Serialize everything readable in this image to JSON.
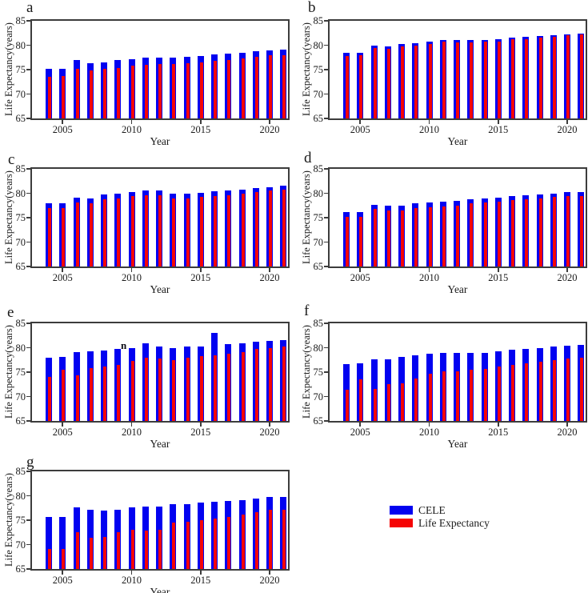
{
  "figure": {
    "y_axis_label": "Life Expectancy(years)",
    "x_axis_label": "Year",
    "y_ticks": [
      65,
      70,
      75,
      80,
      85
    ],
    "x_tick_years": [
      2005,
      2010,
      2015,
      2020
    ],
    "colors": {
      "cele": "#0202F0",
      "life_expectancy": "#F50505",
      "axis": "#3c3c3c"
    },
    "legend": {
      "items": [
        {
          "label": "CELE",
          "color": "#0202F0"
        },
        {
          "label": "Life Expectancy",
          "color": "#F50505"
        }
      ]
    }
  },
  "chart_data": [
    {
      "type": "bar",
      "panel": "a",
      "title": "",
      "xlabel": "Year",
      "ylabel": "Life Expectancy(years)",
      "ylim": [
        65,
        85
      ],
      "x": [
        2004,
        2005,
        2006,
        2007,
        2008,
        2009,
        2010,
        2011,
        2012,
        2013,
        2014,
        2015,
        2016,
        2017,
        2018,
        2019,
        2020,
        2021
      ],
      "series": [
        {
          "name": "CELE",
          "color": "#0202F0",
          "values": [
            75.2,
            75.1,
            76.9,
            76.3,
            76.5,
            76.9,
            77.2,
            77.4,
            77.5,
            77.4,
            77.6,
            77.8,
            78.1,
            78.3,
            78.5,
            78.8,
            79.0,
            79.1
          ]
        },
        {
          "name": "Life Expectancy",
          "color": "#F50505",
          "values": [
            73.6,
            73.7,
            75.2,
            74.8,
            75.1,
            75.4,
            75.8,
            76.0,
            76.1,
            76.1,
            76.3,
            76.5,
            76.8,
            77.0,
            77.3,
            77.6,
            77.9,
            78.0
          ]
        }
      ]
    },
    {
      "type": "bar",
      "panel": "b",
      "title": "",
      "xlabel": "Year",
      "ylabel": "Life Expectancy(years)",
      "ylim": [
        65,
        85
      ],
      "x": [
        2004,
        2005,
        2006,
        2007,
        2008,
        2009,
        2010,
        2011,
        2012,
        2013,
        2014,
        2015,
        2016,
        2017,
        2018,
        2019,
        2020,
        2021
      ],
      "series": [
        {
          "name": "CELE",
          "color": "#0202F0",
          "values": [
            78.4,
            78.4,
            80.0,
            79.8,
            80.2,
            80.4,
            80.8,
            81.1,
            81.0,
            81.0,
            81.1,
            81.2,
            81.5,
            81.7,
            81.9,
            82.0,
            82.2,
            82.4
          ]
        },
        {
          "name": "Life Expectancy",
          "color": "#F50505",
          "values": [
            77.8,
            77.9,
            79.5,
            79.2,
            79.7,
            79.9,
            80.3,
            80.7,
            80.5,
            80.6,
            80.7,
            80.8,
            81.2,
            81.3,
            81.5,
            81.8,
            82.0,
            82.2
          ]
        }
      ]
    },
    {
      "type": "bar",
      "panel": "c",
      "title": "",
      "xlabel": "Year",
      "ylabel": "Life Expectancy(years)",
      "ylim": [
        65,
        85
      ],
      "x": [
        2004,
        2005,
        2006,
        2007,
        2008,
        2009,
        2010,
        2011,
        2012,
        2013,
        2014,
        2015,
        2016,
        2017,
        2018,
        2019,
        2020,
        2021
      ],
      "series": [
        {
          "name": "CELE",
          "color": "#0202F0",
          "values": [
            77.9,
            77.9,
            79.1,
            78.9,
            79.7,
            79.9,
            80.3,
            80.5,
            80.5,
            80.0,
            80.0,
            80.1,
            80.4,
            80.5,
            80.8,
            81.1,
            81.3,
            81.5
          ]
        },
        {
          "name": "Life Expectancy",
          "color": "#F50505",
          "values": [
            76.9,
            77.0,
            78.1,
            77.9,
            78.8,
            78.9,
            79.5,
            79.6,
            79.6,
            79.0,
            79.0,
            79.2,
            79.4,
            79.6,
            79.9,
            80.3,
            80.5,
            80.8
          ]
        }
      ]
    },
    {
      "type": "bar",
      "panel": "d",
      "title": "",
      "xlabel": "Year",
      "ylabel": "Life Expectancy(years)",
      "ylim": [
        65,
        85
      ],
      "x": [
        2004,
        2005,
        2006,
        2007,
        2008,
        2009,
        2010,
        2011,
        2012,
        2013,
        2014,
        2015,
        2016,
        2017,
        2018,
        2019,
        2020,
        2021
      ],
      "series": [
        {
          "name": "CELE",
          "color": "#0202F0",
          "values": [
            76.2,
            76.2,
            77.7,
            77.5,
            77.5,
            77.9,
            78.1,
            78.3,
            78.4,
            78.7,
            79.0,
            79.1,
            79.4,
            79.6,
            79.8,
            80.0,
            80.2,
            80.2
          ]
        },
        {
          "name": "Life Expectancy",
          "color": "#F50505",
          "values": [
            75.1,
            75.2,
            76.8,
            76.5,
            76.4,
            76.9,
            77.1,
            77.3,
            77.4,
            77.9,
            78.1,
            78.3,
            78.6,
            78.7,
            78.9,
            79.2,
            79.4,
            79.5
          ]
        }
      ]
    },
    {
      "type": "bar",
      "panel": "e",
      "title": "",
      "xlabel": "Year",
      "ylabel": "Life Expectancy(years)",
      "ylim": [
        65,
        85
      ],
      "annotation": {
        "text": "n",
        "near_year": 2010
      },
      "x": [
        2004,
        2005,
        2006,
        2007,
        2008,
        2009,
        2010,
        2011,
        2012,
        2013,
        2014,
        2015,
        2016,
        2017,
        2018,
        2019,
        2020,
        2021
      ],
      "series": [
        {
          "name": "CELE",
          "color": "#0202F0",
          "values": [
            78.0,
            78.1,
            79.1,
            79.2,
            79.5,
            79.7,
            80.0,
            80.9,
            80.3,
            79.9,
            80.2,
            80.3,
            83.0,
            80.7,
            80.9,
            81.2,
            81.4,
            81.5
          ]
        },
        {
          "name": "Life Expectancy",
          "color": "#F50505",
          "values": [
            74.0,
            75.5,
            74.3,
            75.9,
            76.2,
            76.5,
            77.3,
            77.9,
            77.8,
            77.5,
            77.9,
            78.2,
            78.5,
            78.7,
            79.1,
            79.7,
            80.0,
            80.2
          ]
        }
      ]
    },
    {
      "type": "bar",
      "panel": "f",
      "title": "",
      "xlabel": "Year",
      "ylabel": "Life Expectancy(years)",
      "ylim": [
        65,
        85
      ],
      "x": [
        2004,
        2005,
        2006,
        2007,
        2008,
        2009,
        2010,
        2011,
        2012,
        2013,
        2014,
        2015,
        2016,
        2017,
        2018,
        2019,
        2020,
        2021
      ],
      "series": [
        {
          "name": "CELE",
          "color": "#0202F0",
          "values": [
            76.7,
            76.8,
            77.7,
            77.7,
            78.1,
            78.5,
            78.7,
            79.0,
            79.0,
            78.9,
            79.0,
            79.3,
            79.6,
            79.8,
            80.0,
            80.2,
            80.4,
            80.5
          ]
        },
        {
          "name": "Life Expectancy",
          "color": "#F50505",
          "values": [
            71.4,
            73.6,
            71.5,
            72.6,
            72.7,
            73.7,
            74.7,
            75.1,
            75.2,
            75.5,
            75.6,
            76.1,
            76.5,
            76.8,
            77.2,
            77.5,
            77.8,
            78.0
          ]
        }
      ]
    },
    {
      "type": "bar",
      "panel": "g",
      "title": "",
      "xlabel": "Year",
      "ylabel": "Life Expectancy(years)",
      "ylim": [
        65,
        85
      ],
      "x": [
        2004,
        2005,
        2006,
        2007,
        2008,
        2009,
        2010,
        2011,
        2012,
        2013,
        2014,
        2015,
        2016,
        2017,
        2018,
        2019,
        2020,
        2021
      ],
      "series": [
        {
          "name": "CELE",
          "color": "#0202F0",
          "values": [
            75.6,
            75.6,
            77.7,
            77.1,
            77.0,
            77.2,
            77.7,
            77.8,
            77.8,
            78.2,
            78.2,
            78.6,
            78.8,
            78.9,
            79.1,
            79.5,
            79.8,
            79.8
          ]
        },
        {
          "name": "Life Expectancy",
          "color": "#F50505",
          "values": [
            69.1,
            69.1,
            72.5,
            71.4,
            71.5,
            72.6,
            73.0,
            72.9,
            73.0,
            74.5,
            74.6,
            75.0,
            75.4,
            75.6,
            76.2,
            76.7,
            77.2,
            77.2
          ]
        }
      ]
    }
  ]
}
